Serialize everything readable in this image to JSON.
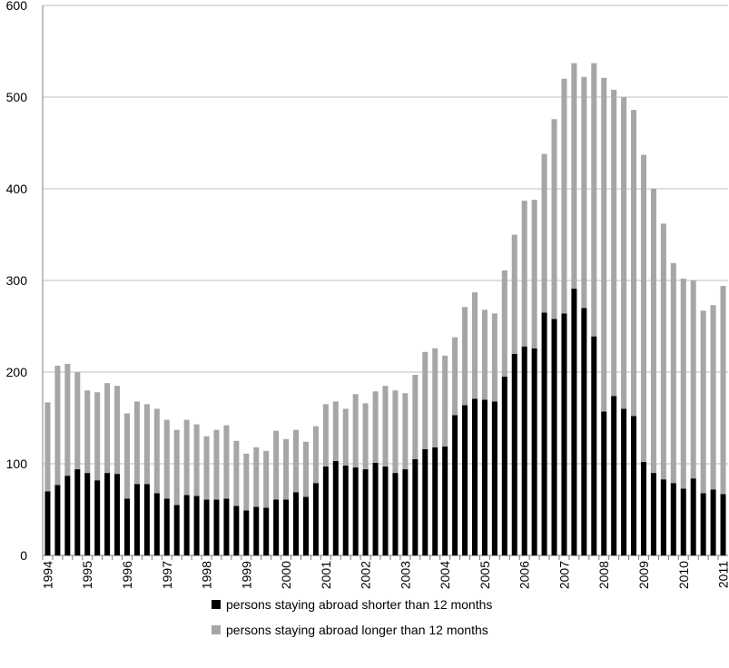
{
  "chart_data": {
    "type": "stacked_bar",
    "categories": [
      "1994",
      null,
      null,
      null,
      "1995",
      null,
      null,
      null,
      "1996",
      null,
      null,
      null,
      "1997",
      null,
      null,
      null,
      "1998",
      null,
      null,
      null,
      "1999",
      null,
      null,
      null,
      "2000",
      null,
      null,
      null,
      "2001",
      null,
      null,
      null,
      "2002",
      null,
      null,
      null,
      "2003",
      null,
      null,
      null,
      "2004",
      null,
      null,
      null,
      "2005",
      null,
      null,
      null,
      "2006",
      null,
      null,
      null,
      "2007",
      null,
      null,
      null,
      "2008",
      null,
      null,
      null,
      "2009",
      null,
      null,
      null,
      "2010",
      null,
      null,
      null,
      "2011"
    ],
    "series": [
      {
        "name": "persons staying abroad shorter than 12 months",
        "color": "#000000",
        "values": [
          70,
          77,
          87,
          94,
          90,
          82,
          90,
          89,
          62,
          78,
          78,
          68,
          62,
          55,
          66,
          65,
          61,
          61,
          62,
          54,
          49,
          53,
          52,
          61,
          61,
          69,
          64,
          79,
          97,
          103,
          98,
          96,
          94,
          101,
          97,
          90,
          94,
          105,
          116,
          118,
          119,
          153,
          164,
          171,
          170,
          168,
          195,
          220,
          228,
          226,
          265,
          258,
          264,
          291,
          270,
          239,
          157,
          174,
          160,
          152,
          102,
          90,
          83,
          79,
          73,
          84,
          68,
          72,
          67
        ]
      },
      {
        "name": "persons staying abroad longer than 12 months",
        "color": "#a6a6a6",
        "values": [
          97,
          130,
          122,
          106,
          90,
          96,
          98,
          96,
          93,
          90,
          87,
          92,
          86,
          82,
          82,
          78,
          69,
          76,
          80,
          71,
          62,
          65,
          62,
          75,
          66,
          68,
          60,
          62,
          68,
          65,
          62,
          80,
          72,
          78,
          88,
          90,
          83,
          92,
          106,
          108,
          99,
          85,
          107,
          116,
          98,
          96,
          116,
          130,
          159,
          162,
          173,
          218,
          256,
          246,
          252,
          298,
          364,
          334,
          340,
          334,
          335,
          310,
          279,
          240,
          229,
          216,
          199,
          201,
          227
        ]
      }
    ],
    "ylim": [
      0,
      600
    ],
    "yticks": [
      0,
      100,
      200,
      300,
      400,
      500,
      600
    ],
    "grid": true
  }
}
